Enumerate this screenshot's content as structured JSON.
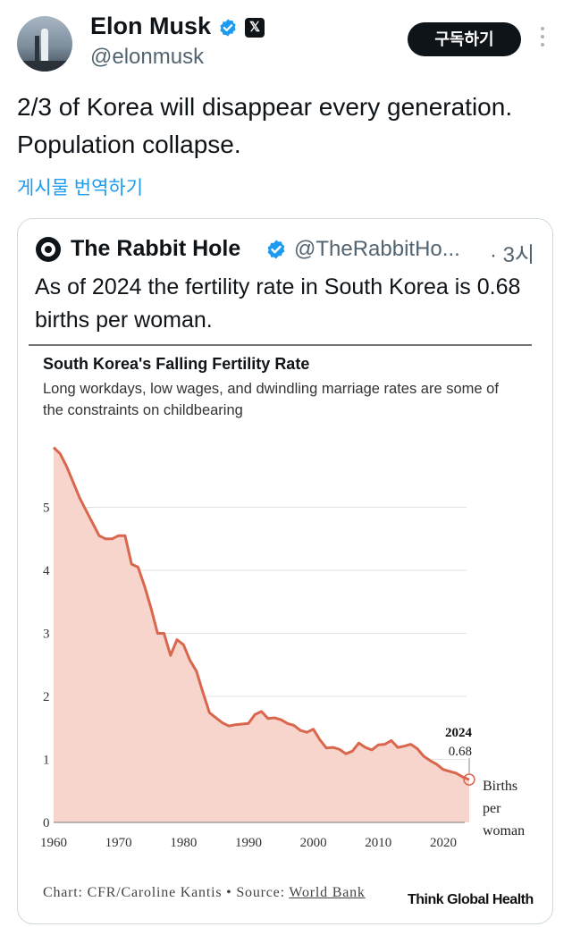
{
  "post": {
    "author_name": "Elon Musk",
    "author_handle": "@elonmusk",
    "subscribe_label": "구독하기",
    "text": "2/3 of Korea will disappear every generation. Population collapse.",
    "translate_label": "게시물 번역하기"
  },
  "quote": {
    "author_name": "The Rabbit Hole",
    "author_handle": "@TheRabbitHo...",
    "time": "· 3시",
    "text": "As of 2024 the fertility rate in South Korea is 0.68 births per woman."
  },
  "chart_card": {
    "source_prefix": "Chart: CFR/Caroline Kantis • Source: ",
    "source_link": "World Bank",
    "brand": "Think Global Health"
  },
  "chart_data": {
    "type": "area",
    "title": "South Korea's Falling Fertility Rate",
    "subtitle": "Long workdays, low wages, and dwindling marriage rates are some of the constraints on childbearing",
    "ylabel": "Births per woman",
    "xlim": [
      1960,
      2024
    ],
    "ylim": [
      0,
      6
    ],
    "x_ticks": [
      1960,
      1970,
      1980,
      1990,
      2000,
      2010,
      2020
    ],
    "y_ticks": [
      0,
      1,
      2,
      3,
      4,
      5
    ],
    "grid": true,
    "colors": {
      "line": "#d9674e",
      "fill": "#f7d4cc"
    },
    "annotation": {
      "year_label": "2024",
      "value_label": "0.68",
      "x": 2024,
      "y": 0.68
    },
    "series": [
      {
        "x": [
          1960,
          1961,
          1962,
          1963,
          1964,
          1965,
          1966,
          1967,
          1968,
          1969,
          1970,
          1971,
          1972,
          1973,
          1974,
          1975,
          1976,
          1977,
          1978,
          1979,
          1980,
          1981,
          1982,
          1983,
          1984,
          1985,
          1986,
          1987,
          1988,
          1989,
          1990,
          1991,
          1992,
          1993,
          1994,
          1995,
          1996,
          1997,
          1998,
          1999,
          2000,
          2001,
          2002,
          2003,
          2004,
          2005,
          2006,
          2007,
          2008,
          2009,
          2010,
          2011,
          2012,
          2013,
          2014,
          2015,
          2016,
          2017,
          2018,
          2019,
          2020,
          2021,
          2022,
          2023,
          2024
        ],
        "values": [
          5.95,
          5.85,
          5.65,
          5.4,
          5.15,
          4.95,
          4.75,
          4.55,
          4.5,
          4.5,
          4.55,
          4.55,
          4.1,
          4.05,
          3.75,
          3.4,
          3.0,
          3.0,
          2.65,
          2.9,
          2.82,
          2.57,
          2.4,
          2.06,
          1.74,
          1.66,
          1.58,
          1.53,
          1.55,
          1.56,
          1.57,
          1.71,
          1.76,
          1.65,
          1.66,
          1.63,
          1.57,
          1.54,
          1.46,
          1.43,
          1.48,
          1.31,
          1.18,
          1.19,
          1.16,
          1.09,
          1.13,
          1.26,
          1.19,
          1.15,
          1.23,
          1.24,
          1.3,
          1.19,
          1.21,
          1.24,
          1.17,
          1.05,
          0.98,
          0.92,
          0.84,
          0.81,
          0.78,
          0.72,
          0.68
        ]
      }
    ]
  }
}
